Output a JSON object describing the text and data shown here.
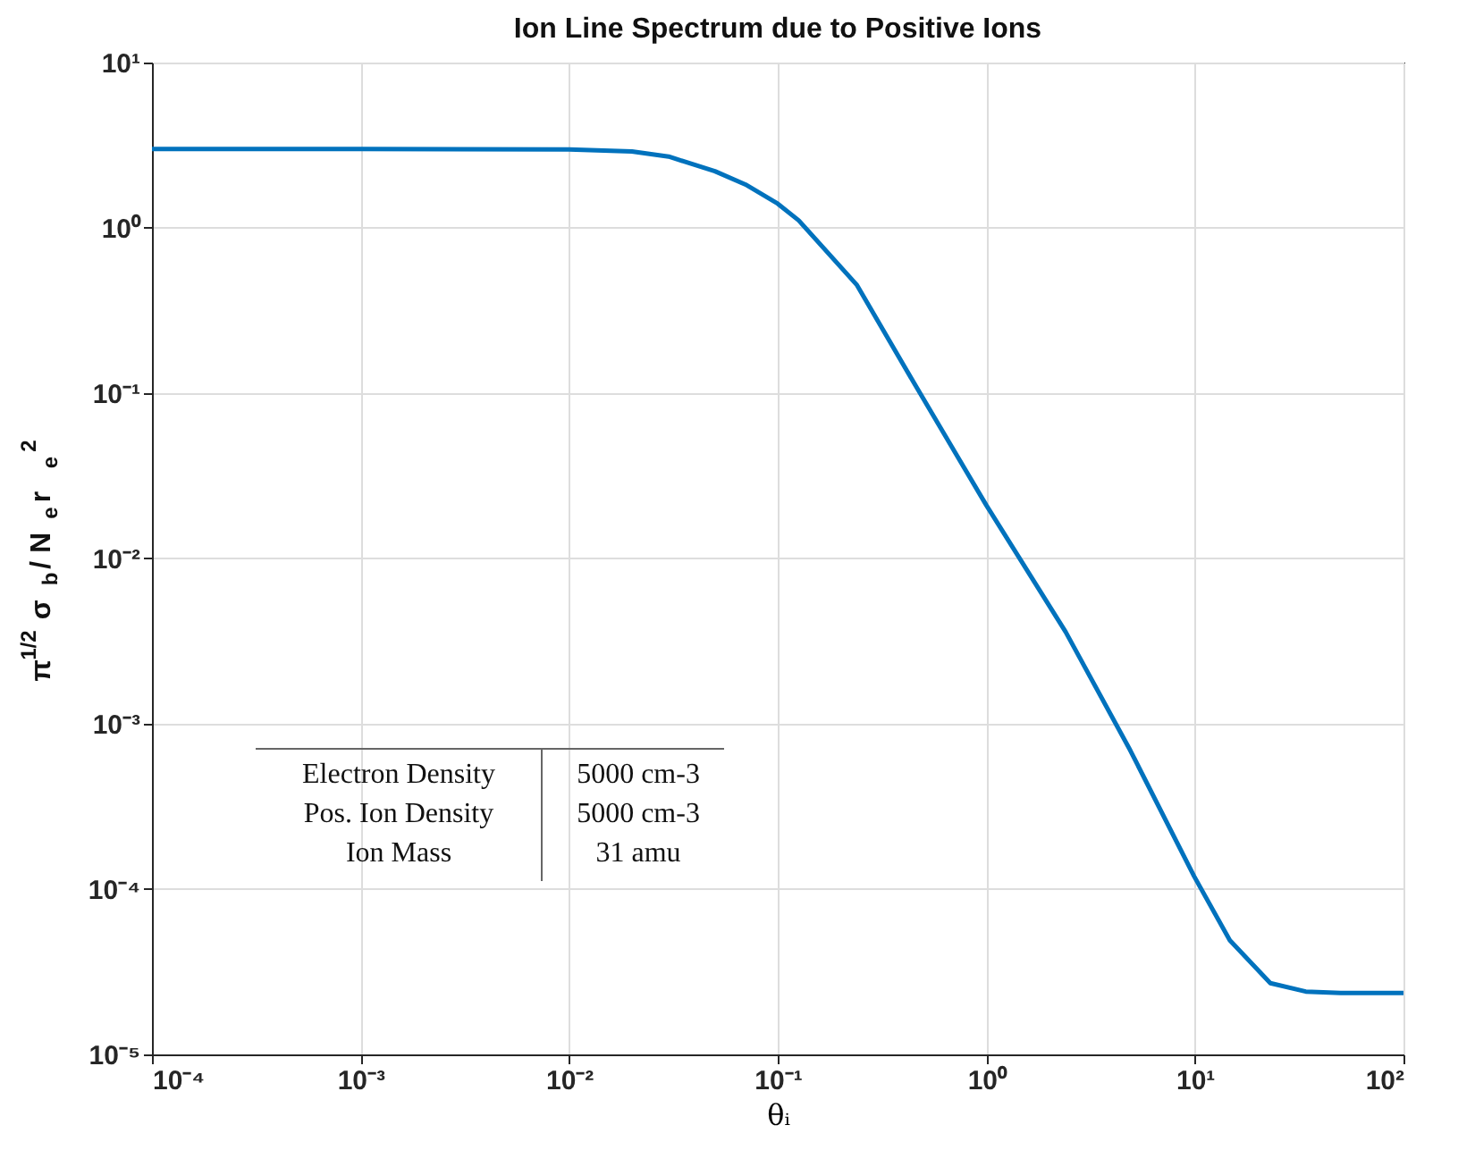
{
  "chart_data": {
    "type": "line",
    "title": "Ion Line Spectrum due to Positive Ions",
    "xlabel": "θᵢ",
    "ylabel": "π$^{1/2}$ σ$_{b}$/ N$_{e}$ r$_{e}$$^{2}$",
    "log": "xy",
    "grid": true,
    "line_style": "solid",
    "marker": "none",
    "xlim": [
      0.0001,
      100
    ],
    "ylim": [
      1e-05,
      10
    ],
    "xticks": [
      {
        "value": 0.0001,
        "label": "10⁻⁴"
      },
      {
        "value": 0.001,
        "label": "10⁻³"
      },
      {
        "value": 0.01,
        "label": "10⁻²"
      },
      {
        "value": 0.1,
        "label": "10⁻¹"
      },
      {
        "value": 1,
        "label": "10⁰"
      },
      {
        "value": 10,
        "label": "10¹"
      },
      {
        "value": 100,
        "label": "10²"
      }
    ],
    "yticks": [
      {
        "value": 1e-05,
        "label": "10⁻⁵"
      },
      {
        "value": 0.0001,
        "label": "10⁻⁴"
      },
      {
        "value": 0.001,
        "label": "10⁻³"
      },
      {
        "value": 0.01,
        "label": "10⁻²"
      },
      {
        "value": 0.1,
        "label": "10⁻¹"
      },
      {
        "value": 1,
        "label": "10⁰"
      },
      {
        "value": 10,
        "label": "10¹"
      }
    ],
    "x": [
      0.0001,
      0.001,
      0.01,
      0.02,
      0.03,
      0.05,
      0.07,
      0.1,
      0.126,
      0.24,
      0.46,
      1.0,
      2.4,
      4.9,
      9.9,
      14.7,
      23,
      34,
      50,
      100
    ],
    "series": [
      {
        "color": "#0072bd",
        "values": [
          3.0,
          3.0,
          2.98,
          2.9,
          2.7,
          2.2,
          1.83,
          1.4,
          1.11,
          0.45,
          0.11,
          0.021,
          0.0036,
          0.00069,
          0.00012,
          4.9e-05,
          2.7e-05,
          2.4e-05,
          2.35e-05,
          2.35e-05
        ]
      }
    ],
    "annotations": [
      "Electron Density",
      "5000 cm-3",
      "Pos. Ion Density",
      "5000 cm-3",
      "Ion Mass",
      "31 amu"
    ]
  }
}
